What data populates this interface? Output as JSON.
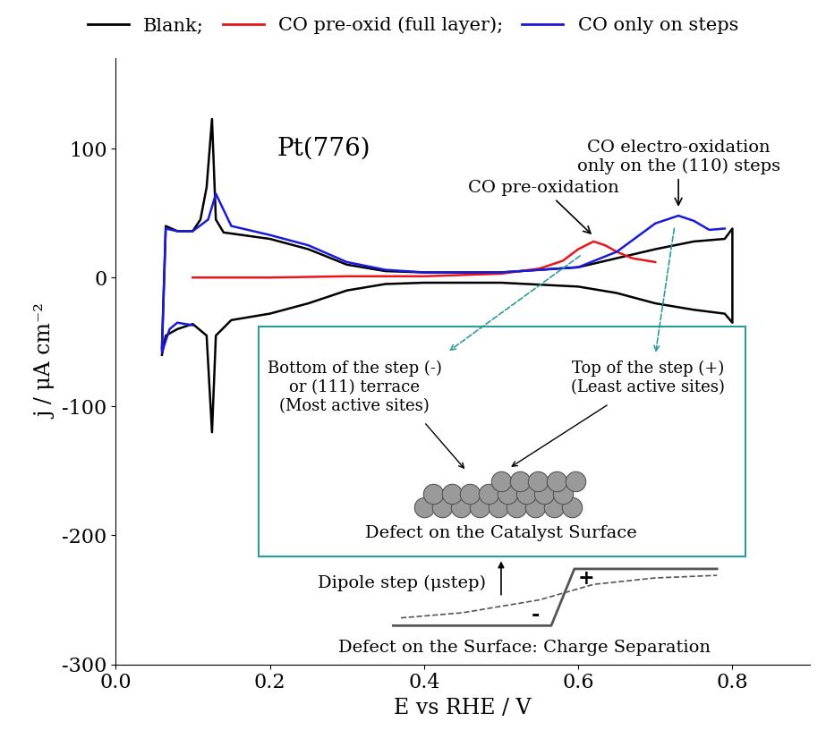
{
  "chart_data": {
    "type": "line",
    "x_label": "E vs RHE / V",
    "y_label": "j / μA cm⁻²",
    "xlim": [
      0.0,
      0.9
    ],
    "ylim": [
      -300,
      170
    ],
    "xticks": [
      0.0,
      0.2,
      0.4,
      0.6,
      0.8
    ],
    "yticks": [
      -300,
      -200,
      -100,
      0,
      100
    ],
    "legend": "upper center",
    "series": [
      {
        "name": "Blank;",
        "color": "#000000",
        "x": [
          0.06,
          0.065,
          0.08,
          0.1,
          0.11,
          0.118,
          0.125,
          0.13,
          0.14,
          0.2,
          0.25,
          0.3,
          0.35,
          0.4,
          0.5,
          0.6,
          0.65,
          0.7,
          0.75,
          0.79,
          0.8,
          0.8,
          0.79,
          0.75,
          0.7,
          0.65,
          0.6,
          0.5,
          0.4,
          0.35,
          0.3,
          0.25,
          0.2,
          0.15,
          0.13,
          0.125,
          0.118,
          0.1,
          0.08,
          0.065,
          0.06
        ],
        "values": [
          -55,
          40,
          36,
          36,
          45,
          70,
          123,
          45,
          35,
          30,
          22,
          10,
          5,
          4,
          4,
          8,
          15,
          22,
          28,
          30,
          38,
          -35,
          -28,
          -25,
          -20,
          -12,
          -7,
          -4,
          -4,
          -5,
          -10,
          -20,
          -28,
          -33,
          -45,
          -120,
          -45,
          -36,
          -40,
          -45,
          -60
        ]
      },
      {
        "name": "CO pre-oxid (full layer);",
        "color": "#e8161b",
        "x": [
          0.1,
          0.2,
          0.3,
          0.4,
          0.45,
          0.5,
          0.55,
          0.58,
          0.6,
          0.62,
          0.635,
          0.65,
          0.67,
          0.7
        ],
        "values": [
          0,
          0,
          1,
          1,
          2,
          3,
          7,
          13,
          22,
          28,
          25,
          20,
          15,
          12
        ]
      },
      {
        "name": "CO only on steps",
        "color": "#1a1adb",
        "x": [
          0.1,
          0.08,
          0.07,
          0.06,
          0.065,
          0.08,
          0.1,
          0.12,
          0.13,
          0.15,
          0.2,
          0.25,
          0.3,
          0.35,
          0.4,
          0.5,
          0.6,
          0.65,
          0.7,
          0.73,
          0.75,
          0.77,
          0.79
        ],
        "values": [
          -37,
          -35,
          -40,
          -58,
          38,
          36,
          36,
          45,
          65,
          40,
          33,
          25,
          12,
          6,
          4,
          4,
          8,
          20,
          42,
          48,
          44,
          37,
          38
        ]
      }
    ],
    "annotations": {
      "label": "Pt(776)",
      "pre_oxidation": "CO pre-oxidation",
      "step_oxidation": "CO electro-oxidation\nonly on the (110) steps",
      "bottom_site": "Bottom of the step (-)\nor (111) terrace\n(Most active sites)",
      "top_site": "Top of the step (+)\n(Least active sites)",
      "surface_caption": "Defect on the Catalyst Surface",
      "dipole": "Dipole step (μstep)",
      "plus": "+",
      "minus": "-",
      "charge_caption": "Defect on the Surface: Charge Separation"
    }
  }
}
